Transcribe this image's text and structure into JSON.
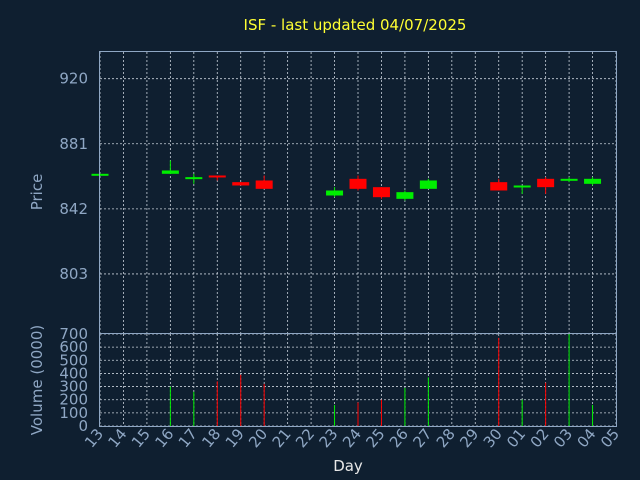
{
  "chart_data": [
    {
      "type": "candlestick",
      "title": "ISF - last updated 04/07/2025",
      "ylabel": "Price",
      "yticks": [
        803,
        842,
        881,
        920
      ],
      "ylim": [
        767,
        936
      ],
      "grid": true,
      "colors": {
        "up": "#00ee00",
        "down": "#ff0000",
        "background": "#0f1f30",
        "axis": "#8fa7c4",
        "title": "#ffff33"
      },
      "candles": [
        {
          "day": "13",
          "open": 862,
          "close": 863,
          "high": 863,
          "low": 862
        },
        {
          "day": "16",
          "open": 863,
          "close": 865,
          "high": 871,
          "low": 863
        },
        {
          "day": "17",
          "open": 860,
          "close": 861,
          "high": 863,
          "low": 857
        },
        {
          "day": "18",
          "open": 862,
          "close": 861,
          "high": 862,
          "low": 859
        },
        {
          "day": "19",
          "open": 858,
          "close": 856,
          "high": 858,
          "low": 856
        },
        {
          "day": "20",
          "open": 859,
          "close": 854,
          "high": 862,
          "low": 854
        },
        {
          "day": "23",
          "open": 850,
          "close": 853,
          "high": 855,
          "low": 849
        },
        {
          "day": "24",
          "open": 860,
          "close": 854,
          "high": 862,
          "low": 853
        },
        {
          "day": "25",
          "open": 855,
          "close": 849,
          "high": 855,
          "low": 848
        },
        {
          "day": "26",
          "open": 848,
          "close": 852,
          "high": 853,
          "low": 847
        },
        {
          "day": "27",
          "open": 854,
          "close": 859,
          "high": 860,
          "low": 854
        },
        {
          "day": "30",
          "open": 858,
          "close": 853,
          "high": 860,
          "low": 853
        },
        {
          "day": "01",
          "open": 855,
          "close": 856,
          "high": 856,
          "low": 851
        },
        {
          "day": "02",
          "open": 860,
          "close": 855,
          "high": 861,
          "low": 851
        },
        {
          "day": "03",
          "open": 859,
          "close": 860,
          "high": 861,
          "low": 858
        },
        {
          "day": "04",
          "open": 857,
          "close": 860,
          "high": 861,
          "low": 856
        }
      ]
    },
    {
      "type": "bar",
      "ylabel": "Volume (0000)",
      "xlabel": "Day",
      "yticks": [
        0,
        100,
        200,
        300,
        400,
        500,
        600,
        700
      ],
      "ylim": [
        0,
        700
      ],
      "categories": [
        "13",
        "14",
        "15",
        "16",
        "17",
        "18",
        "19",
        "20",
        "21",
        "22",
        "23",
        "24",
        "25",
        "26",
        "27",
        "28",
        "29",
        "30",
        "01",
        "02",
        "03",
        "04",
        "05"
      ],
      "bars": [
        {
          "day": "16",
          "value": 300,
          "direction": "up"
        },
        {
          "day": "17",
          "value": 260,
          "direction": "up"
        },
        {
          "day": "18",
          "value": 340,
          "direction": "down"
        },
        {
          "day": "19",
          "value": 390,
          "direction": "down"
        },
        {
          "day": "20",
          "value": 320,
          "direction": "down"
        },
        {
          "day": "23",
          "value": 160,
          "direction": "up"
        },
        {
          "day": "24",
          "value": 180,
          "direction": "down"
        },
        {
          "day": "25",
          "value": 200,
          "direction": "down"
        },
        {
          "day": "26",
          "value": 290,
          "direction": "up"
        },
        {
          "day": "27",
          "value": 370,
          "direction": "up"
        },
        {
          "day": "30",
          "value": 670,
          "direction": "down"
        },
        {
          "day": "01",
          "value": 200,
          "direction": "up"
        },
        {
          "day": "02",
          "value": 330,
          "direction": "down"
        },
        {
          "day": "03",
          "value": 700,
          "direction": "up"
        },
        {
          "day": "04",
          "value": 160,
          "direction": "up"
        }
      ]
    }
  ]
}
